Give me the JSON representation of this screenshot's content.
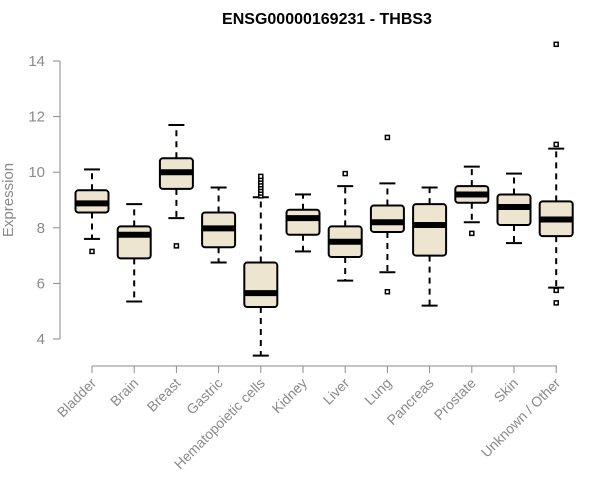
{
  "chart_data": {
    "type": "boxplot",
    "title": "ENSG00000169231 - THBS3",
    "xlabel": "",
    "ylabel": "Expression",
    "ylim": [
      3,
      15
    ],
    "yticks": [
      4,
      6,
      8,
      10,
      12,
      14
    ],
    "grid": false,
    "categories": [
      "Bladder",
      "Brain",
      "Breast",
      "Gastric",
      "Hematopoietic cells",
      "Kidney",
      "Liver",
      "Lung",
      "Pancreas",
      "Prostate",
      "Skin",
      "Unknown / Other"
    ],
    "boxes": [
      {
        "category": "Bladder",
        "whisker_low": 7.6,
        "q1": 8.55,
        "median": 8.88,
        "q3": 9.35,
        "whisker_high": 10.1,
        "outliers": [
          7.15
        ]
      },
      {
        "category": "Brain",
        "whisker_low": 5.35,
        "q1": 6.9,
        "median": 7.75,
        "q3": 8.05,
        "whisker_high": 8.85,
        "outliers": []
      },
      {
        "category": "Breast",
        "whisker_low": 8.35,
        "q1": 9.4,
        "median": 10.0,
        "q3": 10.5,
        "whisker_high": 11.7,
        "outliers": [
          7.35
        ]
      },
      {
        "category": "Gastric",
        "whisker_low": 6.75,
        "q1": 7.3,
        "median": 7.98,
        "q3": 8.55,
        "whisker_high": 9.45,
        "outliers": []
      },
      {
        "category": "Hematopoietic cells",
        "whisker_low": 3.4,
        "q1": 5.15,
        "median": 5.65,
        "q3": 6.75,
        "whisker_high": 9.1,
        "outliers": [
          9.15,
          9.25,
          9.35,
          9.45,
          9.55,
          9.65,
          9.75,
          9.85
        ]
      },
      {
        "category": "Kidney",
        "whisker_low": 7.15,
        "q1": 7.75,
        "median": 8.35,
        "q3": 8.65,
        "whisker_high": 9.2,
        "outliers": []
      },
      {
        "category": "Liver",
        "whisker_low": 6.1,
        "q1": 6.95,
        "median": 7.5,
        "q3": 8.05,
        "whisker_high": 9.5,
        "outliers": [
          9.95
        ]
      },
      {
        "category": "Lung",
        "whisker_low": 6.4,
        "q1": 7.85,
        "median": 8.2,
        "q3": 8.8,
        "whisker_high": 9.6,
        "outliers": [
          5.7,
          11.25
        ]
      },
      {
        "category": "Pancreas",
        "whisker_low": 5.2,
        "q1": 7.0,
        "median": 8.1,
        "q3": 8.85,
        "whisker_high": 9.45,
        "outliers": []
      },
      {
        "category": "Prostate",
        "whisker_low": 8.2,
        "q1": 8.9,
        "median": 9.2,
        "q3": 9.5,
        "whisker_high": 10.2,
        "outliers": [
          7.8
        ]
      },
      {
        "category": "Skin",
        "whisker_low": 7.45,
        "q1": 8.1,
        "median": 8.75,
        "q3": 9.2,
        "whisker_high": 9.95,
        "outliers": []
      },
      {
        "category": "Unknown / Other",
        "whisker_low": 5.85,
        "q1": 7.7,
        "median": 8.3,
        "q3": 8.95,
        "whisker_high": 10.85,
        "outliers": [
          5.3,
          5.75,
          11.0,
          14.6
        ]
      }
    ],
    "colors": {
      "box_fill": "#ede5cf",
      "box_stroke": "#000000",
      "axis": "#8a8a8a"
    }
  }
}
